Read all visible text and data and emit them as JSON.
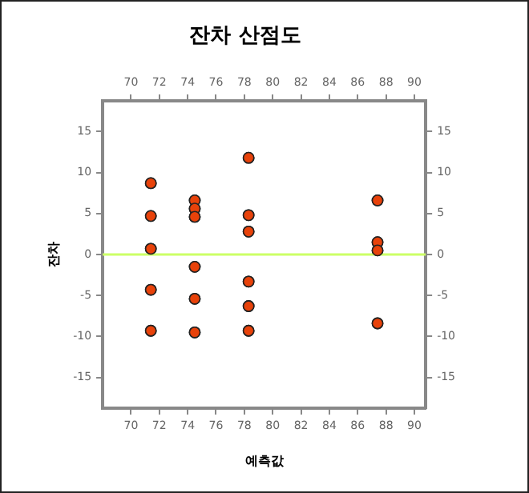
{
  "chart_data": {
    "type": "scatter",
    "title": "잔차 산점도",
    "xlabel": "예측값",
    "ylabel": "잔차",
    "series": [
      {
        "color": "#e8420a",
        "x": [
          71.4,
          71.4,
          71.4,
          71.4,
          71.4,
          74.5,
          74.5,
          74.5,
          74.5,
          74.5,
          74.5,
          78.3,
          78.3,
          78.3,
          78.3,
          78.3,
          78.3,
          87.4,
          87.4,
          87.4,
          87.4
        ],
        "values": [
          8.7,
          4.7,
          0.7,
          -4.3,
          -9.3,
          6.6,
          5.6,
          4.6,
          -1.5,
          -5.4,
          -9.5,
          11.8,
          4.8,
          2.8,
          -3.3,
          -6.3,
          -9.3,
          6.6,
          1.5,
          0.5,
          -8.4
        ]
      }
    ],
    "xlim": [
      68,
      90.8
    ],
    "xticks": [
      70,
      72,
      74,
      76,
      78,
      80,
      82,
      84,
      86,
      88,
      90
    ],
    "x2lim": [
      68,
      90.8
    ],
    "x2ticks": [
      70,
      72,
      74,
      76,
      78,
      80,
      82,
      84,
      86,
      88,
      90
    ],
    "ylim": [
      -18.75,
      18.75
    ],
    "yticks": [
      -15,
      -10,
      -5,
      0,
      5,
      10,
      15
    ],
    "y2lim": [
      -18.75,
      18.75
    ],
    "y2ticks": [
      -15,
      -10,
      -5,
      0,
      5,
      10,
      15
    ],
    "ref_lines": [
      {
        "axis": "y",
        "value": 0,
        "color": "#ccff66"
      }
    ],
    "marker": "circle",
    "grid": false,
    "legend": false
  }
}
